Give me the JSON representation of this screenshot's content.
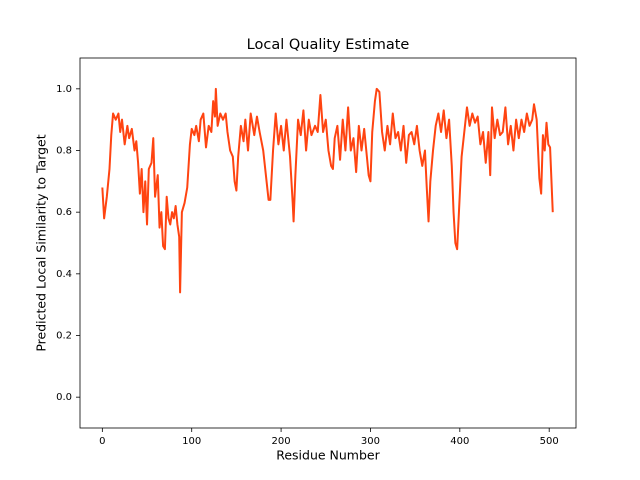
{
  "chart_data": {
    "type": "line",
    "title": "Local Quality Estimate",
    "x_label": "Residue Number",
    "y_label": "Predicted Local Similarity to Target",
    "xlim": [
      -25,
      530
    ],
    "ylim": [
      -0.1,
      1.1
    ],
    "xticks": [
      0,
      100,
      200,
      300,
      400,
      500
    ],
    "yticks": [
      {
        "value": 0,
        "label": "0.0"
      },
      0.2,
      0.4,
      0.6,
      0.8,
      {
        "value": 1,
        "label": "1.0"
      }
    ],
    "grid": false,
    "series": [
      {
        "color": "#ff4411",
        "x": [
          0,
          2,
          5,
          8,
          10,
          12,
          15,
          18,
          20,
          22,
          25,
          28,
          30,
          33,
          36,
          38,
          40,
          42,
          44,
          46,
          48,
          50,
          52,
          55,
          57,
          59,
          62,
          64,
          66,
          68,
          70,
          72,
          74,
          76,
          78,
          80,
          82,
          84,
          86,
          87,
          89,
          92,
          95,
          98,
          100,
          103,
          105,
          108,
          110,
          113,
          116,
          119,
          122,
          124,
          126,
          127,
          129,
          132,
          135,
          138,
          140,
          143,
          146,
          148,
          150,
          152,
          155,
          158,
          160,
          163,
          166,
          170,
          173,
          176,
          180,
          183,
          186,
          188,
          191,
          194,
          197,
          200,
          203,
          206,
          208,
          210,
          213,
          214,
          216,
          219,
          222,
          225,
          228,
          231,
          234,
          238,
          241,
          244,
          247,
          250,
          253,
          256,
          258,
          260,
          263,
          266,
          269,
          272,
          275,
          278,
          281,
          284,
          287,
          290,
          293,
          296,
          298,
          300,
          302,
          305,
          307,
          310,
          313,
          316,
          319,
          322,
          325,
          328,
          331,
          334,
          337,
          340,
          343,
          346,
          349,
          352,
          355,
          358,
          361,
          363,
          365,
          367,
          370,
          373,
          376,
          379,
          382,
          385,
          388,
          391,
          393,
          395,
          397,
          399,
          402,
          405,
          408,
          411,
          414,
          417,
          420,
          423,
          426,
          429,
          432,
          434,
          436,
          439,
          442,
          445,
          448,
          451,
          454,
          457,
          460,
          463,
          466,
          469,
          472,
          475,
          478,
          481,
          483,
          486,
          489,
          491,
          493,
          495,
          497,
          499,
          501,
          504
        ],
        "values": [
          0.68,
          0.58,
          0.65,
          0.74,
          0.85,
          0.92,
          0.9,
          0.92,
          0.86,
          0.9,
          0.82,
          0.88,
          0.84,
          0.87,
          0.8,
          0.83,
          0.76,
          0.66,
          0.74,
          0.6,
          0.7,
          0.56,
          0.74,
          0.76,
          0.84,
          0.65,
          0.72,
          0.55,
          0.6,
          0.49,
          0.48,
          0.65,
          0.58,
          0.56,
          0.6,
          0.58,
          0.62,
          0.56,
          0.52,
          0.34,
          0.6,
          0.63,
          0.68,
          0.82,
          0.87,
          0.85,
          0.88,
          0.83,
          0.9,
          0.92,
          0.81,
          0.88,
          0.86,
          0.96,
          0.91,
          1.0,
          0.88,
          0.92,
          0.9,
          0.92,
          0.86,
          0.8,
          0.78,
          0.7,
          0.67,
          0.78,
          0.88,
          0.83,
          0.9,
          0.8,
          0.92,
          0.85,
          0.91,
          0.86,
          0.8,
          0.72,
          0.64,
          0.64,
          0.8,
          0.92,
          0.82,
          0.88,
          0.8,
          0.9,
          0.84,
          0.78,
          0.63,
          0.57,
          0.72,
          0.9,
          0.85,
          0.93,
          0.8,
          0.9,
          0.85,
          0.88,
          0.86,
          0.98,
          0.86,
          0.9,
          0.8,
          0.75,
          0.74,
          0.84,
          0.88,
          0.77,
          0.9,
          0.8,
          0.94,
          0.8,
          0.84,
          0.73,
          0.88,
          0.8,
          0.87,
          0.78,
          0.72,
          0.7,
          0.86,
          0.96,
          1.0,
          0.99,
          0.86,
          0.8,
          0.88,
          0.82,
          0.92,
          0.84,
          0.86,
          0.8,
          0.88,
          0.76,
          0.85,
          0.86,
          0.82,
          0.88,
          0.8,
          0.75,
          0.8,
          0.68,
          0.57,
          0.7,
          0.8,
          0.88,
          0.92,
          0.86,
          0.93,
          0.84,
          0.9,
          0.75,
          0.6,
          0.5,
          0.48,
          0.6,
          0.78,
          0.86,
          0.94,
          0.88,
          0.92,
          0.89,
          0.91,
          0.82,
          0.86,
          0.76,
          0.86,
          0.72,
          0.94,
          0.84,
          0.9,
          0.85,
          0.86,
          0.94,
          0.82,
          0.88,
          0.8,
          0.9,
          0.84,
          0.9,
          0.86,
          0.92,
          0.88,
          0.9,
          0.95,
          0.9,
          0.71,
          0.66,
          0.85,
          0.8,
          0.89,
          0.82,
          0.81,
          0.6
        ]
      }
    ]
  }
}
